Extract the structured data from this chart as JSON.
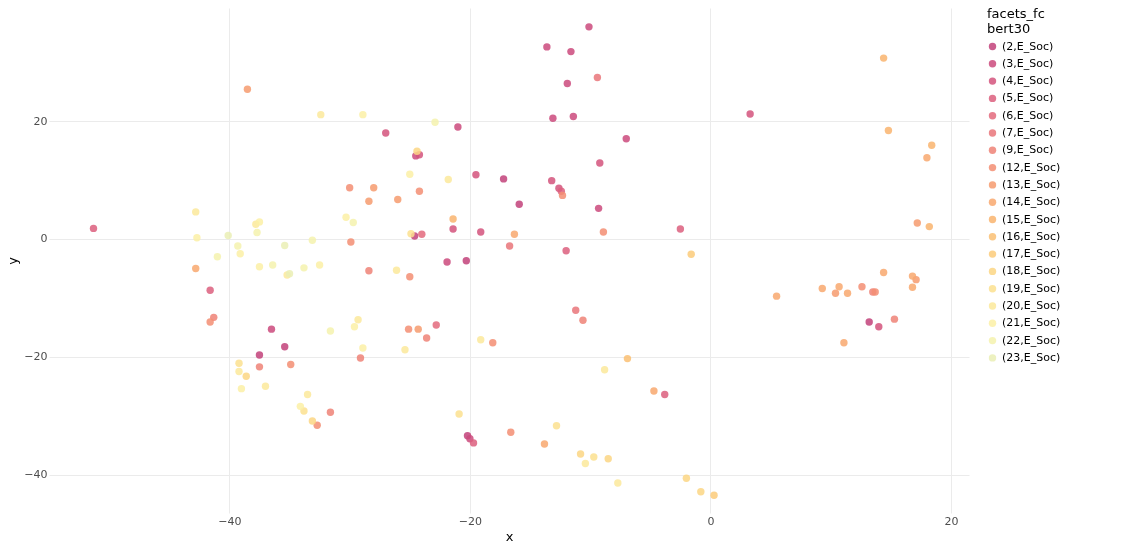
{
  "chart_data": {
    "type": "scatter",
    "xlabel": "x",
    "ylabel": "y",
    "legend_title": "facets_fc bert30",
    "legend": "right",
    "grid": true,
    "marker": "circle",
    "xlim": [
      -55,
      21.5
    ],
    "ylim": [
      -46.5,
      39.2
    ],
    "xticks": [
      -40,
      -20,
      0,
      20
    ],
    "yticks": [
      -40,
      -20,
      0,
      20
    ],
    "series": [
      {
        "name": "(2,E_Soc)",
        "color": "#c2427a",
        "x": [
          -17.2,
          -15.9,
          -24.6,
          -20.3,
          -35.4,
          -37.5,
          -20.2,
          13.2
        ],
        "values": [
          10.2,
          5.9,
          0.5,
          -3.7,
          -18.3,
          -19.7,
          -33.4,
          -14.1
        ]
      },
      {
        "name": "(3,E_Soc)",
        "color": "#cb4a7c",
        "x": [
          -13.6,
          -10.1,
          -11.6,
          -11.9,
          -13.1,
          -11.4,
          -7.0,
          -21.0,
          -24.5,
          -9.3,
          -21.9,
          -36.5,
          -20.0
        ],
        "values": [
          32.6,
          36.0,
          31.8,
          26.4,
          20.5,
          20.8,
          17.0,
          19.0,
          14.1,
          5.2,
          -3.9,
          -15.3,
          -33.9
        ]
      },
      {
        "name": "(4,E_Soc)",
        "color": "#d4547d",
        "x": [
          3.3,
          -27.0,
          -24.2,
          -19.5,
          -13.2,
          -12.6,
          -9.2,
          -21.4,
          -19.1,
          14.0
        ],
        "values": [
          21.2,
          18.0,
          14.3,
          10.9,
          9.9,
          8.6,
          12.9,
          1.7,
          1.2,
          -14.9
        ]
      },
      {
        "name": "(5,E_Soc)",
        "color": "#dc5f7e",
        "x": [
          -51.3,
          -12.4,
          -2.5,
          -12.0,
          -41.6,
          -19.7,
          -3.8
        ],
        "values": [
          1.8,
          8.1,
          1.7,
          -2.0,
          -8.7,
          -34.6,
          -26.4
        ]
      },
      {
        "name": "(6,E_Soc)",
        "color": "#e36a7c",
        "x": [
          -24.0,
          -22.8
        ],
        "values": [
          0.8,
          -14.6
        ]
      },
      {
        "name": "(7,E_Soc)",
        "color": "#e9767a",
        "x": [
          -9.4,
          -16.7,
          -11.2
        ],
        "values": [
          27.4,
          -1.2,
          -12.1
        ]
      },
      {
        "name": "(9,E_Soc)",
        "color": "#ef8277",
        "x": [
          -28.4,
          -41.3,
          -37.5,
          -31.6,
          -29.1,
          -23.6,
          -10.6,
          13.5,
          15.3
        ],
        "values": [
          -5.4,
          -13.3,
          -21.7,
          -29.4,
          -20.2,
          -16.8,
          -13.8,
          -9.0,
          -13.6
        ]
      },
      {
        "name": "(12,E_Soc)",
        "color": "#f38e73",
        "x": [
          -12.3,
          -24.2,
          -30.0,
          -29.9,
          -25.0,
          -41.6,
          -34.9,
          -32.7,
          -25.1,
          -18.1,
          -16.6,
          -8.9,
          12.6,
          13.7
        ],
        "values": [
          7.4,
          8.1,
          8.7,
          -0.5,
          -6.4,
          -14.1,
          -21.3,
          -31.6,
          -15.3,
          -17.6,
          -32.8,
          1.2,
          -8.1,
          -9.0
        ]
      },
      {
        "name": "(13,E_Soc)",
        "color": "#f69b6f",
        "x": [
          -28.0,
          -28.4,
          -26.0,
          -24.3,
          10.4,
          17.1,
          17.2,
          -38.5
        ],
        "values": [
          8.7,
          6.4,
          6.7,
          -15.3,
          -9.2,
          -6.9,
          2.7,
          25.4
        ]
      },
      {
        "name": "(14,E_Soc)",
        "color": "#f8a86e",
        "x": [
          -16.3,
          -13.8,
          5.5,
          9.3,
          10.7,
          11.4,
          14.4,
          16.8,
          16.8,
          11.1,
          -4.7,
          18.0,
          -42.8
        ],
        "values": [
          0.8,
          -34.8,
          -9.7,
          -8.4,
          -8.1,
          -9.2,
          -5.7,
          -6.3,
          -8.2,
          -17.6,
          -25.8,
          13.8,
          -5.0
        ]
      },
      {
        "name": "(15,E_Soc)",
        "color": "#f9b46f",
        "x": [
          -21.4,
          14.4,
          14.8,
          18.4,
          18.2
        ],
        "values": [
          3.4,
          30.7,
          18.4,
          15.9,
          2.1
        ]
      },
      {
        "name": "(16,E_Soc)",
        "color": "#fac073",
        "x": [
          -6.9
        ],
        "values": [
          -20.3
        ]
      },
      {
        "name": "(17,E_Soc)",
        "color": "#fbcb7a",
        "x": [
          -1.6,
          0.3
        ],
        "values": [
          -2.6,
          -43.5
        ]
      },
      {
        "name": "(18,E_Soc)",
        "color": "#fcd684",
        "x": [
          -8.5,
          -2.0,
          -0.8,
          -10.8,
          -33.1,
          -24.4,
          -38.6
        ],
        "values": [
          -37.3,
          -40.6,
          -42.9,
          -36.5,
          -30.9,
          14.9,
          -23.3
        ]
      },
      {
        "name": "(19,E_Soc)",
        "color": "#fce08f",
        "x": [
          -9.7,
          -20.9,
          -12.8,
          -33.8,
          -24.9,
          -39.2
        ],
        "values": [
          -37.0,
          -29.7,
          -31.7,
          -29.2,
          0.9,
          -21.1
        ]
      },
      {
        "name": "(20,E_Soc)",
        "color": "#fce99b",
        "x": [
          -8.8,
          -7.7,
          -19.1,
          -10.4,
          -33.5,
          -29.3,
          -25.4,
          -26.1,
          -32.4,
          -21.8,
          -42.8,
          -37.8,
          -35.2,
          -39.2,
          -37.0
        ],
        "values": [
          -22.2,
          -41.4,
          -17.1,
          -38.1,
          -26.4,
          -13.7,
          -18.8,
          -5.3,
          21.1,
          10.1,
          4.6,
          2.5,
          -6.1,
          -22.5,
          -25.0
        ]
      },
      {
        "name": "(21,E_Soc)",
        "color": "#fbf0a6",
        "x": [
          -34.1,
          -29.6,
          -28.9,
          -32.5,
          -28.9,
          -25.0,
          -30.3,
          -42.7,
          -39.1,
          -37.5,
          -37.5,
          -39.0
        ],
        "values": [
          -28.4,
          -14.9,
          -18.5,
          -4.4,
          21.1,
          11.0,
          3.7,
          0.2,
          -2.5,
          2.9,
          -4.7,
          -25.4
        ]
      },
      {
        "name": "(22,E_Soc)",
        "color": "#f5f2ae",
        "x": [
          -31.6,
          -33.8,
          -22.9,
          -29.7,
          -33.1,
          -39.3,
          -41.0,
          -37.7,
          -36.4
        ],
        "values": [
          -15.6,
          -4.9,
          19.8,
          2.8,
          -0.2,
          -1.2,
          -3.0,
          1.1,
          -4.4
        ]
      },
      {
        "name": "(23,E_Soc)",
        "color": "#eaefb5",
        "x": [
          -35.0,
          -40.1,
          -35.4
        ],
        "values": [
          -5.9,
          0.6,
          -1.1
        ]
      }
    ]
  }
}
